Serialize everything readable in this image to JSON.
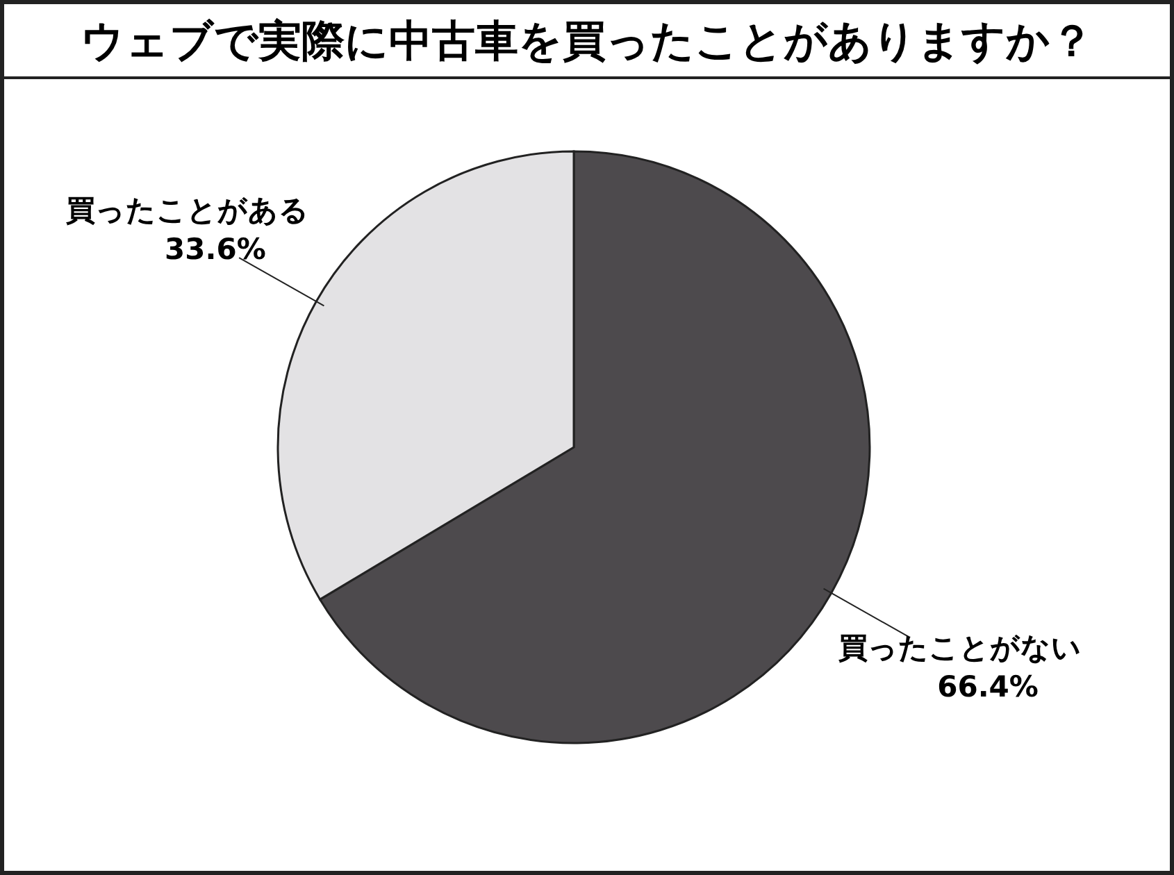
{
  "chart_data": {
    "type": "pie",
    "title": "ウェブで実際に中古車を買ったことがありますか？",
    "categories": [
      "買ったことがない",
      "買ったことがある"
    ],
    "values": [
      66.4,
      33.6
    ],
    "colors": [
      "#4d4a4d",
      "#e3e2e4"
    ],
    "value_labels": [
      "66.4%",
      "33.6%"
    ]
  }
}
